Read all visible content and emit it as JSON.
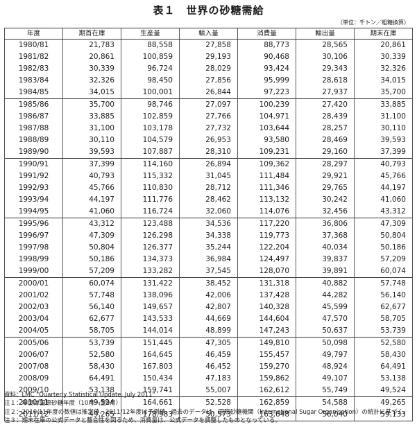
{
  "title": "表１　世界の砂糖需給",
  "unit": "（単位：千トン／粗糖換算）",
  "table": {
    "headers": [
      "年度",
      "期首在庫",
      "生産量",
      "輸入量",
      "消費量",
      "輸出量",
      "期末在庫"
    ],
    "groups": [
      [
        [
          "1980/81",
          "21,783",
          "88,558",
          "27,858",
          "88,773",
          "28,565",
          "20,861"
        ],
        [
          "1981/82",
          "20,861",
          "100,859",
          "29,193",
          "90,468",
          "30,106",
          "30,339"
        ],
        [
          "1982/83",
          "30,339",
          "96,724",
          "28,029",
          "93,424",
          "29,343",
          "32,326"
        ],
        [
          "1983/84",
          "32,326",
          "98,450",
          "27,856",
          "95,999",
          "28,618",
          "34,015"
        ],
        [
          "1984/85",
          "34,015",
          "100,001",
          "26,844",
          "97,223",
          "27,937",
          "35,700"
        ]
      ],
      [
        [
          "1985/86",
          "35,700",
          "98,746",
          "27,097",
          "100,239",
          "27,420",
          "33,885"
        ],
        [
          "1986/87",
          "33,885",
          "102,859",
          "27,766",
          "104,971",
          "28,439",
          "31,100"
        ],
        [
          "1987/88",
          "31,100",
          "103,178",
          "27,732",
          "103,644",
          "28,257",
          "30,110"
        ],
        [
          "1988/89",
          "30,110",
          "104,579",
          "26,953",
          "93,580",
          "28,469",
          "39,593"
        ],
        [
          "1989/90",
          "39,593",
          "107,887",
          "28,310",
          "109,231",
          "29,160",
          "37,399"
        ]
      ],
      [
        [
          "1990/91",
          "37,399",
          "114,160",
          "26,894",
          "109,362",
          "28,297",
          "40,793"
        ],
        [
          "1991/92",
          "40,793",
          "115,332",
          "31,045",
          "111,484",
          "29,921",
          "45,766"
        ],
        [
          "1992/93",
          "45,766",
          "110,830",
          "28,712",
          "111,346",
          "29,765",
          "44,197"
        ],
        [
          "1993/94",
          "44,197",
          "111,776",
          "28,462",
          "113,132",
          "30,242",
          "41,060"
        ],
        [
          "1994/95",
          "41,060",
          "116,724",
          "32,060",
          "114,076",
          "32,456",
          "43,312"
        ]
      ],
      [
        [
          "1995/96",
          "43,312",
          "123,488",
          "34,536",
          "117,220",
          "36,806",
          "47,309"
        ],
        [
          "1996/97",
          "47,309",
          "126,298",
          "34,338",
          "119,773",
          "37,368",
          "50,804"
        ],
        [
          "1997/98",
          "50,804",
          "126,377",
          "35,244",
          "122,204",
          "40,034",
          "50,186"
        ],
        [
          "1998/99",
          "50,186",
          "134,373",
          "36,984",
          "124,497",
          "39,837",
          "57,209"
        ],
        [
          "1999/00",
          "57,209",
          "133,282",
          "37,545",
          "128,070",
          "39,891",
          "60,074"
        ]
      ],
      [
        [
          "2000/01",
          "60,074",
          "131,422",
          "38,452",
          "131,318",
          "40,882",
          "57,748"
        ],
        [
          "2001/02",
          "57,748",
          "138,096",
          "42,006",
          "137,428",
          "44,282",
          "56,140"
        ],
        [
          "2002/03",
          "56,140",
          "149,657",
          "42,807",
          "140,328",
          "45,599",
          "62,677"
        ],
        [
          "2003/04",
          "62,677",
          "143,533",
          "44,669",
          "144,604",
          "47,570",
          "58,705"
        ],
        [
          "2004/05",
          "58,705",
          "144,014",
          "48,899",
          "147,243",
          "50,637",
          "53,739"
        ]
      ],
      [
        [
          "2005/06",
          "53,739",
          "151,445",
          "47,305",
          "149,810",
          "50,098",
          "52,580"
        ],
        [
          "2006/07",
          "52,580",
          "164,645",
          "46,459",
          "155,457",
          "49,797",
          "58,430"
        ],
        [
          "2007/08",
          "58,430",
          "167,803",
          "46,452",
          "159,270",
          "48,924",
          "64,491"
        ],
        [
          "2008/09",
          "64,491",
          "150,434",
          "47,183",
          "159,862",
          "49,107",
          "53,138"
        ],
        [
          "2009/10",
          "53,138",
          "159,741",
          "55,007",
          "162,612",
          "55,749",
          "49,524"
        ]
      ],
      [
        [
          "2010/11",
          "49,524",
          "164,661",
          "52,528",
          "162,859",
          "54,588",
          "49,265"
        ],
        [
          "2011/12",
          "49,265",
          "178,983",
          "50,573",
          "163,648",
          "56,040",
          "59,133"
        ]
      ]
    ]
  },
  "notes": [
    "資料：LMC \"Quarterly Statistical Update, July 2011\"",
    "注１：年度は国際砂糖年度（10月～翌9月）",
    "注２：2010/11年度の数値は推定値、2011/12年度は予測値。過去のデータは、国際砂糖機関（International Sugar Organisation）の統計に基づく。",
    "注３：期末在庫の公式データと整合性を図るため、消費量は、公式データを調整したものとなっている。"
  ]
}
